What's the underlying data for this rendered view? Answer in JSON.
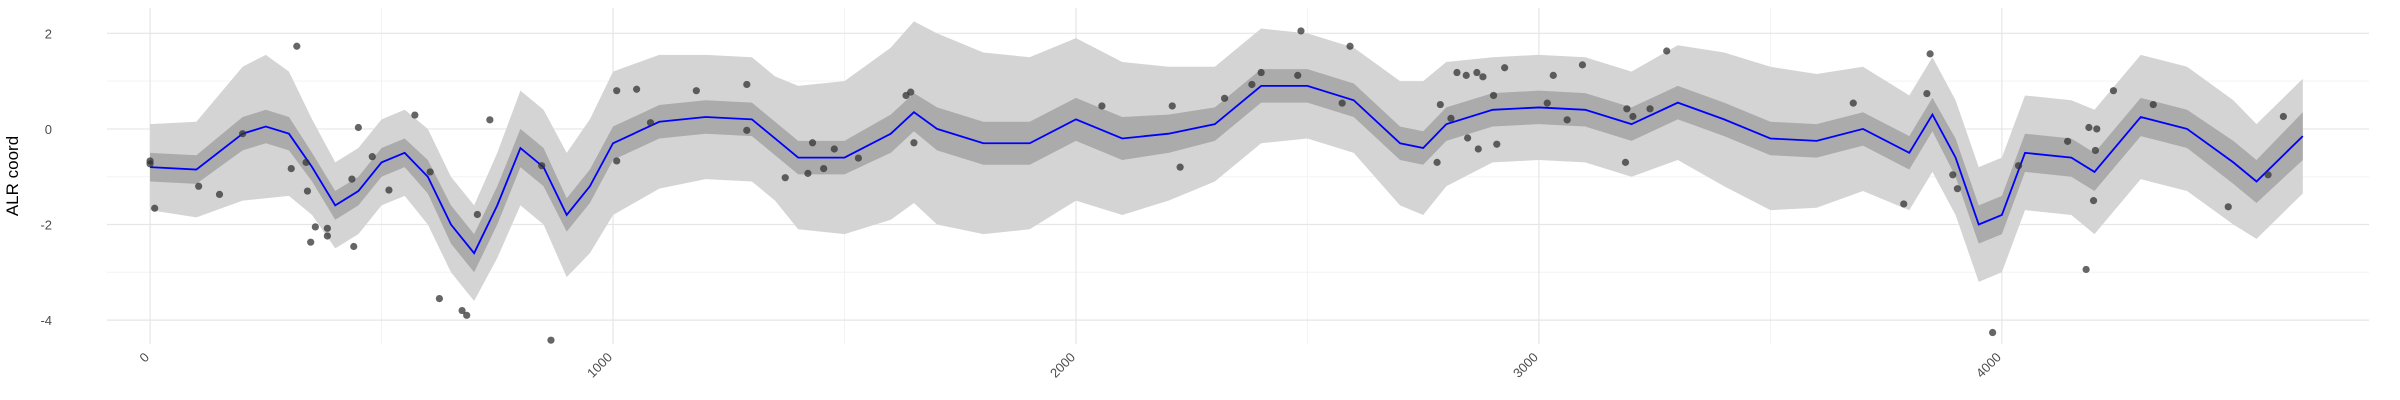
{
  "chart_data": {
    "type": "line",
    "y_label": "ALR coord",
    "xlim": [
      -93,
      4793
    ],
    "ylim": [
      -4.5,
      2.53
    ],
    "xticks": [
      0,
      1000,
      2000,
      3000,
      4000
    ],
    "yticks": [
      -4,
      -2,
      0,
      2
    ],
    "grid": true,
    "x": [
      0,
      100,
      200,
      250,
      300,
      350,
      400,
      450,
      500,
      550,
      600,
      650,
      700,
      750,
      800,
      850,
      900,
      950,
      1000,
      1100,
      1200,
      1300,
      1350,
      1400,
      1500,
      1600,
      1650,
      1700,
      1800,
      1900,
      2000,
      2100,
      2200,
      2300,
      2400,
      2500,
      2600,
      2700,
      2750,
      2800,
      2900,
      3000,
      3100,
      3200,
      3300,
      3400,
      3500,
      3600,
      3700,
      3800,
      3850,
      3900,
      3950,
      4000,
      4050,
      4150,
      4200,
      4300,
      4400,
      4500,
      4550,
      4650
    ],
    "mean": {
      "color": "#0000ff",
      "values": [
        -0.8,
        -0.85,
        -0.1,
        0.05,
        -0.1,
        -0.8,
        -1.6,
        -1.3,
        -0.7,
        -0.5,
        -1.0,
        -2.0,
        -2.6,
        -1.6,
        -0.4,
        -0.8,
        -1.8,
        -1.2,
        -0.3,
        0.15,
        0.25,
        0.2,
        -0.2,
        -0.6,
        -0.6,
        -0.1,
        0.35,
        0.0,
        -0.3,
        -0.3,
        0.2,
        -0.2,
        -0.1,
        0.1,
        0.9,
        0.9,
        0.6,
        -0.3,
        -0.4,
        0.1,
        0.4,
        0.45,
        0.4,
        0.1,
        0.55,
        0.2,
        -0.2,
        -0.25,
        0.0,
        -0.5,
        0.3,
        -0.6,
        -2.0,
        -1.8,
        -0.5,
        -0.6,
        -0.9,
        0.25,
        0.0,
        -0.7,
        -1.1,
        -0.15
      ]
    },
    "inner_band": {
      "color": "#ababab",
      "lower": [
        -1.1,
        -1.15,
        -0.45,
        -0.3,
        -0.45,
        -1.1,
        -1.9,
        -1.6,
        -1.0,
        -0.8,
        -1.35,
        -2.4,
        -3.0,
        -2.0,
        -0.8,
        -1.2,
        -2.15,
        -1.55,
        -0.65,
        -0.2,
        -0.1,
        -0.15,
        -0.55,
        -0.95,
        -0.95,
        -0.5,
        -0.05,
        -0.45,
        -0.75,
        -0.75,
        -0.25,
        -0.65,
        -0.5,
        -0.25,
        0.55,
        0.55,
        0.25,
        -0.65,
        -0.75,
        -0.25,
        0.05,
        0.1,
        0.05,
        -0.25,
        0.2,
        -0.15,
        -0.55,
        -0.6,
        -0.35,
        -0.85,
        -0.05,
        -1.0,
        -2.4,
        -2.2,
        -0.9,
        -1.0,
        -1.3,
        -0.15,
        -0.4,
        -1.15,
        -1.55,
        -0.65
      ],
      "upper": [
        -0.5,
        -0.55,
        0.25,
        0.4,
        0.25,
        -0.5,
        -1.3,
        -1.0,
        -0.4,
        -0.2,
        -0.65,
        -1.6,
        -2.2,
        -1.2,
        0.0,
        -0.4,
        -1.45,
        -0.85,
        0.05,
        0.5,
        0.6,
        0.55,
        0.15,
        -0.25,
        -0.25,
        0.3,
        0.75,
        0.45,
        0.15,
        0.15,
        0.65,
        0.25,
        0.3,
        0.45,
        1.25,
        1.25,
        0.95,
        0.05,
        -0.05,
        0.45,
        0.75,
        0.8,
        0.75,
        0.45,
        0.9,
        0.55,
        0.15,
        0.1,
        0.35,
        -0.15,
        0.65,
        -0.2,
        -1.6,
        -1.4,
        -0.1,
        -0.2,
        -0.5,
        0.65,
        0.4,
        -0.25,
        -0.65,
        0.35
      ]
    },
    "outer_band": {
      "color": "#d4d4d4",
      "lower": [
        -1.7,
        -1.85,
        -1.5,
        -1.45,
        -1.4,
        -1.8,
        -2.5,
        -2.2,
        -1.6,
        -1.4,
        -2.0,
        -3.0,
        -3.6,
        -2.7,
        -1.6,
        -2.0,
        -3.1,
        -2.6,
        -1.8,
        -1.25,
        -1.05,
        -1.1,
        -1.5,
        -2.1,
        -2.2,
        -1.9,
        -1.55,
        -2.0,
        -2.2,
        -2.1,
        -1.5,
        -1.8,
        -1.5,
        -1.1,
        -0.3,
        -0.2,
        -0.5,
        -1.6,
        -1.8,
        -1.2,
        -0.7,
        -0.65,
        -0.7,
        -1.0,
        -0.65,
        -1.2,
        -1.7,
        -1.65,
        -1.3,
        -1.7,
        -0.9,
        -1.8,
        -3.2,
        -3.0,
        -1.7,
        -1.8,
        -2.2,
        -1.05,
        -1.3,
        -2.0,
        -2.3,
        -1.35
      ],
      "upper": [
        0.1,
        0.15,
        1.3,
        1.55,
        1.2,
        0.2,
        -0.7,
        -0.4,
        0.2,
        0.4,
        0.0,
        -1.0,
        -1.6,
        -0.5,
        0.8,
        0.4,
        -0.5,
        0.2,
        1.2,
        1.55,
        1.55,
        1.5,
        1.1,
        0.9,
        1.0,
        1.7,
        2.25,
        2.0,
        1.6,
        1.5,
        1.9,
        1.4,
        1.3,
        1.3,
        2.1,
        2.0,
        1.7,
        1.0,
        1.0,
        1.4,
        1.5,
        1.55,
        1.5,
        1.2,
        1.75,
        1.6,
        1.3,
        1.15,
        1.3,
        0.7,
        1.5,
        0.6,
        -0.8,
        -0.6,
        0.7,
        0.6,
        0.4,
        1.55,
        1.3,
        0.6,
        0.1,
        1.05
      ]
    },
    "points": {
      "color": "#333333",
      "x": [
        0,
        0,
        10,
        105,
        150,
        200,
        305,
        317,
        337,
        340,
        347,
        357,
        383,
        383,
        436,
        440,
        450,
        480,
        516,
        572,
        605,
        625,
        674,
        684,
        707,
        734,
        846,
        866,
        1008,
        1008,
        1051,
        1081,
        1180,
        1289,
        1289,
        1372,
        1421,
        1431,
        1455,
        1478,
        1530,
        1633,
        1643,
        1650,
        2056,
        2208,
        2225,
        2321,
        2380,
        2400,
        2479,
        2486,
        2575,
        2592,
        2780,
        2787,
        2810,
        2823,
        2843,
        2846,
        2866,
        2869,
        2879,
        2902,
        2909,
        2926,
        3018,
        3031,
        3061,
        3094,
        3187,
        3190,
        3203,
        3240,
        3276,
        3679,
        3788,
        3838,
        3845,
        3894,
        3904,
        3980,
        4036,
        4142,
        4182,
        4188,
        4198,
        4205,
        4202,
        4241,
        4327,
        4489,
        4575,
        4608
      ],
      "y": [
        -0.67,
        -0.73,
        -1.66,
        -1.2,
        -1.37,
        -0.1,
        -0.83,
        1.73,
        -0.7,
        -1.3,
        -2.37,
        -2.05,
        -2.24,
        -2.08,
        -1.05,
        -2.46,
        0.03,
        -0.58,
        -1.28,
        0.29,
        -0.9,
        -3.55,
        -3.8,
        -3.9,
        -1.79,
        0.19,
        -0.77,
        -4.42,
        0.8,
        -0.67,
        0.83,
        0.13,
        0.8,
        0.93,
        -0.03,
        -1.02,
        -0.93,
        -0.29,
        -0.83,
        -0.42,
        -0.61,
        0.7,
        0.77,
        -0.29,
        0.48,
        0.48,
        -0.8,
        0.64,
        0.93,
        1.18,
        1.12,
        2.05,
        0.54,
        1.73,
        -0.7,
        0.51,
        0.22,
        1.18,
        1.12,
        -0.19,
        1.18,
        -0.42,
        1.09,
        0.7,
        -0.32,
        1.28,
        0.54,
        1.12,
        0.19,
        1.34,
        -0.7,
        0.42,
        0.26,
        0.42,
        1.63,
        0.54,
        -1.57,
        0.74,
        1.57,
        -0.96,
        -1.25,
        -4.26,
        -0.77,
        -0.26,
        -2.94,
        0.03,
        -1.5,
        0.0,
        -0.45,
        0.8,
        0.51,
        -1.63,
        -0.96,
        0.26
      ]
    }
  }
}
